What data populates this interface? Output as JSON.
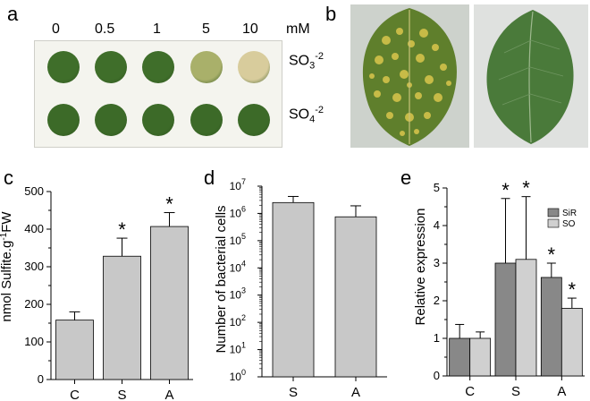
{
  "panels": {
    "a": {
      "letter": "a",
      "concentrations": [
        "0",
        "0.5",
        "1",
        "5",
        "10"
      ],
      "unit": "mM",
      "row_labels": [
        {
          "base": "SO",
          "sub": "3",
          "sup": "-2"
        },
        {
          "base": "SO",
          "sub": "4",
          "sup": "-2"
        }
      ],
      "disc_colors": {
        "so3": [
          "#3f6e2a",
          "#3f6e2a",
          "#3f6e2a",
          "#a9b06a",
          "#d8cc9c"
        ],
        "so4": [
          "#3c6a28",
          "#3c6a28",
          "#3c6a28",
          "#3c6a28",
          "#3c6a28"
        ]
      }
    },
    "b": {
      "letter": "b"
    },
    "c": {
      "letter": "c"
    },
    "d": {
      "letter": "d"
    },
    "e": {
      "letter": "e"
    }
  },
  "chart_data": [
    {
      "panel": "c",
      "type": "bar",
      "categories": [
        "C",
        "S",
        "A"
      ],
      "values": [
        158,
        328,
        407
      ],
      "errors": [
        22,
        48,
        37
      ],
      "significant": [
        false,
        true,
        true
      ],
      "significance_marker": "*",
      "ylabel": "nmol Sulfite.g",
      "ylabel_sup": "-1",
      "ylabel_tail": "FW",
      "ylim": [
        0,
        500
      ],
      "yticks": [
        "0",
        "100",
        "200",
        "300",
        "400",
        "500"
      ],
      "bar_color": "#c8c8c8"
    },
    {
      "panel": "d",
      "type": "bar",
      "scale": "log",
      "categories": [
        "S",
        "A"
      ],
      "values": [
        2500000,
        750000
      ],
      "error_tops": [
        4200000,
        1900000
      ],
      "ylabel": "Number of bacterial cells",
      "ylim": [
        1,
        10000000
      ],
      "yticks": [
        {
          "base": "10",
          "exp": "0"
        },
        {
          "base": "10",
          "exp": "1"
        },
        {
          "base": "10",
          "exp": "2"
        },
        {
          "base": "10",
          "exp": "3"
        },
        {
          "base": "10",
          "exp": "4"
        },
        {
          "base": "10",
          "exp": "5"
        },
        {
          "base": "10",
          "exp": "6"
        },
        {
          "base": "10",
          "exp": "7"
        }
      ],
      "bar_color": "#c8c8c8"
    },
    {
      "panel": "e",
      "type": "bar",
      "categories": [
        "C",
        "S",
        "A"
      ],
      "series": [
        {
          "name": "SiR",
          "values": [
            1.0,
            3.0,
            2.62
          ],
          "errors": [
            0.37,
            1.72,
            0.38
          ],
          "significant": [
            false,
            true,
            true
          ],
          "color": "#888888"
        },
        {
          "name": "SO",
          "values": [
            1.0,
            3.1,
            1.8
          ],
          "errors": [
            0.17,
            1.67,
            0.27
          ],
          "significant": [
            false,
            true,
            true
          ],
          "color": "#d0d0d0"
        }
      ],
      "significance_marker": "*",
      "ylabel": "Relative expression",
      "ylim": [
        0,
        5
      ],
      "yticks": [
        "0",
        "1",
        "2",
        "3",
        "4",
        "5"
      ],
      "legend": "top-right"
    }
  ]
}
